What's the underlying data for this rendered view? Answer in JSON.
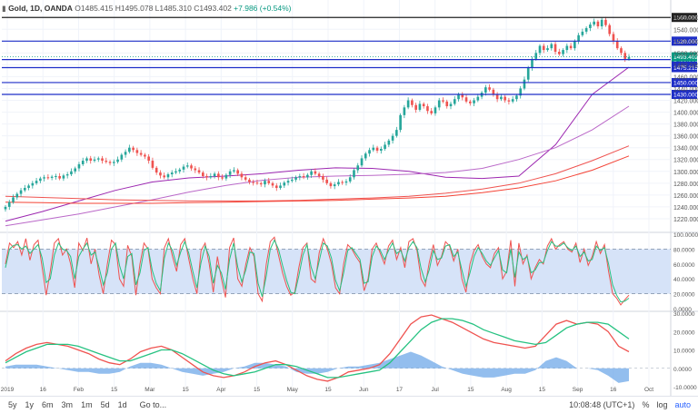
{
  "header": {
    "symbol": "Gold, 1D, OANDA",
    "ohlc": "O1485.415  H1495.078  L1485.310  C1493.402",
    "change": "+7.986 (+0.54%)"
  },
  "bottom_bar": {
    "ranges": [
      "5y",
      "1y",
      "6m",
      "3m",
      "1m",
      "5d",
      "1d"
    ],
    "goto": "Go to...",
    "time": "10:08:48 (UTC+1)",
    "pct": "%",
    "log": "log",
    "auto": "auto"
  },
  "chart_data": [
    {
      "type": "candlestick",
      "title": "",
      "x_labels": [
        "2019",
        "16",
        "Feb",
        "15",
        "Mar",
        "15",
        "Apr",
        "15",
        "May",
        "15",
        "Jun",
        "17",
        "Jul",
        "15",
        "Aug",
        "15",
        "Sep",
        "16",
        "Oct"
      ],
      "y_ticks": [
        "1220.000",
        "1240.000",
        "1260.000",
        "1280.000",
        "1300.000",
        "1320.000",
        "1340.000",
        "1360.000",
        "1380.000",
        "1400.000",
        "1420.000",
        "1440.000",
        "1460.000",
        "1480.000",
        "1500.000",
        "1520.000",
        "1540.000",
        "1560.000"
      ],
      "ylim": [
        1200,
        1568
      ],
      "hlines": [
        {
          "value": 1560,
          "label": "1560.000",
          "color": "#222222"
        },
        {
          "value": 1520,
          "label": "1520.000",
          "color": "#1e2ec8"
        },
        {
          "value": 1488.881,
          "label": "1488.881",
          "color": "#1e2ec8"
        },
        {
          "value": 1475.215,
          "label": "1475.215",
          "color": "#1e2ec8"
        },
        {
          "value": 1450,
          "label": "1450.000",
          "color": "#1e2ec8"
        },
        {
          "value": 1430,
          "label": "1430.000",
          "color": "#1e2ec8"
        }
      ],
      "last_price": {
        "value": 1493.402,
        "label": "1493.402",
        "color": "#089981"
      },
      "closes": [
        1240,
        1248,
        1256,
        1262,
        1268,
        1272,
        1276,
        1280,
        1284,
        1288,
        1290,
        1289,
        1291,
        1292,
        1288,
        1293,
        1295,
        1300,
        1305,
        1312,
        1318,
        1322,
        1318,
        1320,
        1322,
        1318,
        1316,
        1314,
        1316,
        1320,
        1328,
        1333,
        1340,
        1336,
        1331,
        1328,
        1325,
        1318,
        1306,
        1298,
        1293,
        1290,
        1295,
        1298,
        1300,
        1303,
        1308,
        1310,
        1305,
        1302,
        1298,
        1292,
        1290,
        1292,
        1296,
        1290,
        1288,
        1294,
        1300,
        1302,
        1296,
        1290,
        1286,
        1282,
        1281,
        1280,
        1278,
        1284,
        1280,
        1276,
        1272,
        1276,
        1281,
        1284,
        1286,
        1290,
        1292,
        1290,
        1294,
        1300,
        1296,
        1292,
        1286,
        1280,
        1275,
        1278,
        1282,
        1281,
        1283,
        1290,
        1302,
        1310,
        1322,
        1330,
        1336,
        1340,
        1335,
        1338,
        1345,
        1352,
        1360,
        1370,
        1395,
        1408,
        1420,
        1412,
        1404,
        1414,
        1410,
        1402,
        1398,
        1408,
        1420,
        1418,
        1410,
        1414,
        1422,
        1430,
        1425,
        1418,
        1415,
        1420,
        1426,
        1433,
        1442,
        1438,
        1430,
        1422,
        1426,
        1420,
        1418,
        1422,
        1428,
        1440,
        1455,
        1475,
        1490,
        1500,
        1512,
        1505,
        1508,
        1515,
        1502,
        1498,
        1505,
        1512,
        1508,
        1520,
        1530,
        1536,
        1542,
        1548,
        1553,
        1545,
        1556,
        1547,
        1532,
        1520,
        1508,
        1500,
        1490,
        1493
      ],
      "ma_series": [
        {
          "name": "",
          "color": "#9c27b0",
          "values": [
            1216,
            1232,
            1250,
            1268,
            1282,
            1289,
            1292,
            1296,
            1302,
            1306,
            1305,
            1300,
            1290,
            1288,
            1292,
            1345,
            1430,
            1476
          ]
        },
        {
          "name": "",
          "color": "#ba68c8",
          "values": [
            1208,
            1218,
            1228,
            1240,
            1252,
            1265,
            1276,
            1285,
            1290,
            1292,
            1293,
            1295,
            1298,
            1305,
            1320,
            1340,
            1370,
            1410
          ]
        },
        {
          "name": "",
          "color": "#ef5350",
          "values": [
            1258,
            1256,
            1254,
            1252,
            1251,
            1250,
            1250,
            1250,
            1251,
            1253,
            1255,
            1258,
            1263,
            1270,
            1280,
            1296,
            1318,
            1343
          ]
        },
        {
          "name": "",
          "color": "#f44336",
          "values": [
            1248,
            1247,
            1246,
            1246,
            1246,
            1247,
            1248,
            1249,
            1250,
            1251,
            1253,
            1255,
            1258,
            1264,
            1272,
            1284,
            1302,
            1326
          ]
        }
      ]
    },
    {
      "type": "line",
      "title": "",
      "ylim": [
        0,
        100
      ],
      "y_ticks": [
        "0.0000",
        "20.0000",
        "40.0000",
        "60.0000",
        "80.0000",
        "100.0000"
      ],
      "band": [
        20,
        80
      ],
      "series": [
        {
          "name": "",
          "color": "#ef5350",
          "values": [
            60,
            88,
            82,
            90,
            72,
            94,
            65,
            86,
            92,
            55,
            18,
            50,
            88,
            94,
            72,
            80,
            60,
            28,
            88,
            78,
            95,
            60,
            80,
            45,
            20,
            60,
            92,
            86,
            40,
            30,
            85,
            70,
            18,
            60,
            88,
            80,
            40,
            28,
            20,
            82,
            94,
            70,
            50,
            86,
            94,
            66,
            40,
            20,
            78,
            88,
            60,
            22,
            70,
            40,
            15,
            82,
            95,
            40,
            30,
            60,
            82,
            70,
            20,
            10,
            60,
            90,
            96,
            72,
            48,
            30,
            18,
            22,
            55,
            82,
            88,
            40,
            35,
            75,
            94,
            80,
            60,
            28,
            20,
            60,
            86,
            80,
            70,
            62,
            24,
            40,
            80,
            88,
            74,
            60,
            84,
            92,
            66,
            82,
            55,
            90,
            94,
            78,
            40,
            30,
            62,
            86,
            58,
            70,
            90,
            84,
            64,
            80,
            40,
            22,
            60,
            78,
            86,
            70,
            60,
            55,
            74,
            82,
            40,
            50,
            92,
            30,
            88,
            60,
            72,
            40,
            55,
            66,
            60,
            84,
            94,
            80,
            86,
            90,
            80,
            76,
            88,
            62,
            80,
            58,
            70,
            90,
            74,
            86,
            50,
            20,
            14,
            5,
            12,
            18
          ]
        },
        {
          "name": "",
          "color": "#26c281",
          "values": [
            55,
            80,
            85,
            86,
            80,
            84,
            74,
            80,
            86,
            68,
            35,
            40,
            72,
            88,
            80,
            78,
            70,
            40,
            70,
            80,
            88,
            72,
            76,
            55,
            32,
            48,
            80,
            88,
            58,
            40,
            70,
            74,
            32,
            48,
            78,
            82,
            52,
            34,
            24,
            68,
            88,
            78,
            58,
            76,
            90,
            74,
            50,
            28,
            62,
            84,
            70,
            34,
            58,
            48,
            26,
            66,
            88,
            56,
            36,
            52,
            76,
            74,
            34,
            16,
            44,
            80,
            92,
            80,
            58,
            38,
            22,
            20,
            44,
            72,
            86,
            56,
            40,
            64,
            88,
            84,
            68,
            38,
            24,
            48,
            78,
            82,
            74,
            66,
            34,
            36,
            70,
            84,
            78,
            66,
            78,
            88,
            74,
            78,
            64,
            82,
            90,
            82,
            54,
            36,
            52,
            78,
            66,
            68,
            84,
            86,
            70,
            76,
            52,
            30,
            48,
            70,
            82,
            74,
            64,
            58,
            68,
            78,
            52,
            48,
            80,
            42,
            76,
            66,
            70,
            48,
            52,
            62,
            62,
            78,
            90,
            84,
            84,
            88,
            82,
            78,
            84,
            70,
            76,
            64,
            66,
            84,
            78,
            82,
            60,
            32,
            18,
            9,
            10,
            14
          ]
        }
      ]
    },
    {
      "type": "line",
      "title": "",
      "ylim": [
        -10,
        30
      ],
      "y_ticks": [
        "-10.0000",
        "0.0000",
        "10.0000",
        "20.0000",
        "30.0000"
      ],
      "series": [
        {
          "name": "",
          "color": "#ef5350",
          "values": [
            4,
            8,
            11,
            13,
            14,
            13,
            12,
            10,
            8,
            5,
            3,
            2,
            5,
            9,
            11,
            12,
            10,
            6,
            2,
            -2,
            -4,
            -5,
            -4,
            -2,
            1,
            3,
            4,
            2,
            -1,
            -4,
            -6,
            -7,
            -5,
            -2,
            -1,
            0,
            2,
            8,
            16,
            24,
            28,
            29,
            27,
            25,
            22,
            19,
            16,
            14,
            13,
            12,
            11,
            12,
            18,
            24,
            26,
            24,
            25,
            24,
            20,
            12,
            9
          ]
        },
        {
          "name": "",
          "color": "#26c281",
          "values": [
            3,
            6,
            9,
            11,
            13,
            13,
            13,
            12,
            10,
            8,
            6,
            4,
            4,
            6,
            8,
            10,
            10,
            8,
            5,
            2,
            -1,
            -3,
            -4,
            -3,
            -2,
            0,
            2,
            2,
            1,
            -1,
            -3,
            -5,
            -5,
            -4,
            -3,
            -2,
            -1,
            3,
            9,
            15,
            21,
            25,
            27,
            27,
            26,
            24,
            21,
            19,
            17,
            15,
            14,
            13,
            14,
            18,
            22,
            24,
            25,
            25,
            24,
            20,
            16
          ]
        },
        {
          "name": "",
          "color": "#6fa8e8",
          "values": [
            1,
            2,
            2,
            2,
            1,
            0,
            -1,
            -2,
            -2,
            -3,
            -3,
            -2,
            1,
            3,
            3,
            2,
            0,
            -2,
            -3,
            -4,
            -3,
            -2,
            0,
            1,
            3,
            3,
            2,
            1,
            -2,
            -3,
            -3,
            -2,
            0,
            1,
            1,
            2,
            3,
            5,
            7,
            9,
            7,
            4,
            1,
            -1,
            -3,
            -4,
            -5,
            -5,
            -4,
            -3,
            -3,
            -1,
            4,
            6,
            4,
            0,
            0,
            -1,
            -4,
            -8,
            -7
          ]
        }
      ]
    }
  ]
}
